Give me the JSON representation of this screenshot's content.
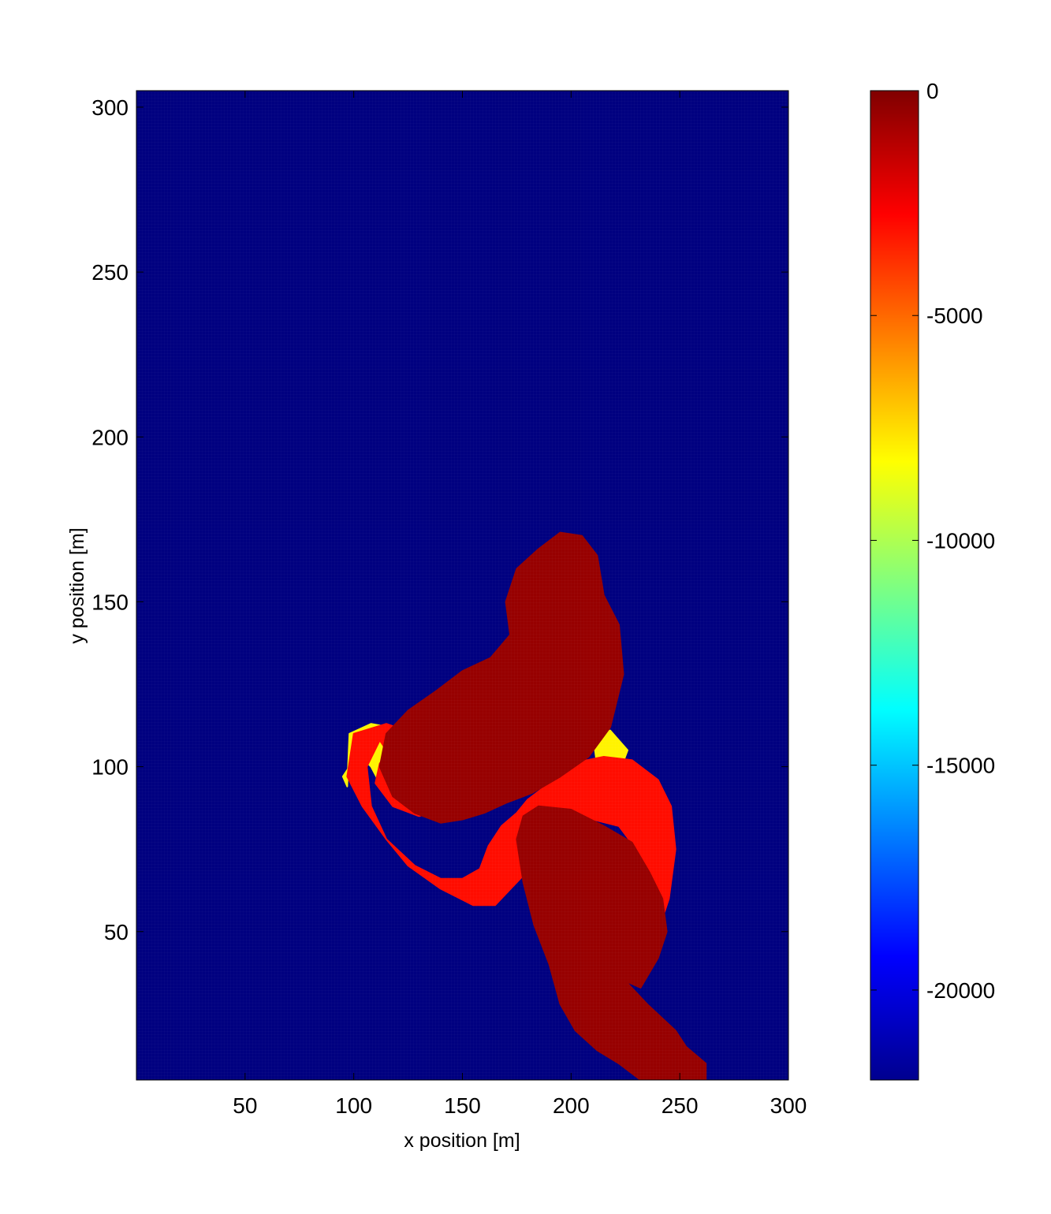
{
  "chart_data": {
    "type": "heatmap",
    "title": "",
    "xlabel": "x position [m]",
    "ylabel": "y position [m]",
    "xlim": [
      0,
      300
    ],
    "ylim": [
      5,
      305
    ],
    "x_ticks": [
      50,
      100,
      150,
      200,
      250,
      300
    ],
    "y_ticks": [
      50,
      100,
      150,
      200,
      250,
      300
    ],
    "colormap": "jet",
    "background_value": -22000,
    "colorbar": {
      "range": [
        -22000,
        0
      ],
      "ticks": [
        0,
        -5000,
        -10000,
        -15000,
        -20000
      ]
    },
    "regions": [
      {
        "value": -8000,
        "polygon": [
          [
            98,
            110
          ],
          [
            108,
            113
          ],
          [
            125,
            111
          ],
          [
            140,
            104
          ],
          [
            150,
            97
          ],
          [
            130,
            93
          ],
          [
            120,
            90
          ],
          [
            112,
            95
          ],
          [
            108,
            100
          ],
          [
            102,
            104
          ],
          [
            95,
            97
          ],
          [
            97,
            94
          ]
        ]
      },
      {
        "value": -8000,
        "polygon": [
          [
            210,
            110
          ],
          [
            218,
            111
          ],
          [
            226,
            105
          ],
          [
            222,
            98
          ],
          [
            212,
            100
          ]
        ]
      },
      {
        "value": -3000,
        "polygon": [
          [
            100,
            110
          ],
          [
            115,
            113
          ],
          [
            128,
            110
          ],
          [
            140,
            104
          ],
          [
            148,
            97
          ],
          [
            145,
            88
          ],
          [
            130,
            85
          ],
          [
            118,
            88
          ],
          [
            110,
            95
          ],
          [
            112,
            101
          ],
          [
            116,
            104
          ],
          [
            112,
            108
          ],
          [
            106,
            100
          ],
          [
            108,
            88
          ],
          [
            115,
            78
          ],
          [
            125,
            70
          ],
          [
            140,
            63
          ],
          [
            155,
            58
          ],
          [
            165,
            58
          ],
          [
            178,
            67
          ],
          [
            185,
            75
          ],
          [
            195,
            80
          ],
          [
            210,
            84
          ],
          [
            222,
            82
          ],
          [
            230,
            75
          ],
          [
            236,
            65
          ],
          [
            240,
            50
          ],
          [
            245,
            60
          ],
          [
            248,
            75
          ],
          [
            246,
            88
          ],
          [
            240,
            96
          ],
          [
            228,
            102
          ],
          [
            215,
            103
          ],
          [
            200,
            101
          ],
          [
            190,
            95
          ],
          [
            180,
            90
          ],
          [
            175,
            86
          ],
          [
            168,
            82
          ],
          [
            162,
            76
          ],
          [
            158,
            69
          ],
          [
            150,
            66
          ],
          [
            140,
            66
          ],
          [
            128,
            70
          ],
          [
            115,
            78
          ],
          [
            104,
            88
          ],
          [
            97,
            97
          ]
        ]
      },
      {
        "value": -500,
        "polygon": [
          [
            175,
            160
          ],
          [
            185,
            166
          ],
          [
            195,
            171
          ],
          [
            205,
            170
          ],
          [
            212,
            164
          ],
          [
            215,
            152
          ],
          [
            222,
            143
          ],
          [
            224,
            128
          ],
          [
            218,
            112
          ],
          [
            208,
            103
          ],
          [
            195,
            97
          ],
          [
            182,
            92
          ],
          [
            170,
            89
          ],
          [
            160,
            86
          ],
          [
            150,
            84
          ],
          [
            140,
            83
          ],
          [
            128,
            86
          ],
          [
            118,
            91
          ],
          [
            112,
            100
          ],
          [
            115,
            110
          ],
          [
            125,
            117
          ],
          [
            138,
            123
          ],
          [
            150,
            129
          ],
          [
            163,
            133
          ],
          [
            172,
            140
          ],
          [
            170,
            150
          ]
        ]
      },
      {
        "value": -500,
        "polygon": [
          [
            178,
            85
          ],
          [
            185,
            88
          ],
          [
            200,
            87
          ],
          [
            215,
            82
          ],
          [
            228,
            77
          ],
          [
            236,
            68
          ],
          [
            242,
            60
          ],
          [
            244,
            50
          ],
          [
            240,
            42
          ],
          [
            232,
            33
          ],
          [
            225,
            35
          ],
          [
            235,
            28
          ],
          [
            248,
            20
          ],
          [
            253,
            15
          ],
          [
            262,
            10
          ],
          [
            262,
            5
          ],
          [
            232,
            5
          ],
          [
            222,
            10
          ],
          [
            212,
            14
          ],
          [
            202,
            20
          ],
          [
            195,
            28
          ],
          [
            190,
            40
          ],
          [
            183,
            52
          ],
          [
            178,
            65
          ],
          [
            175,
            78
          ]
        ]
      }
    ]
  }
}
